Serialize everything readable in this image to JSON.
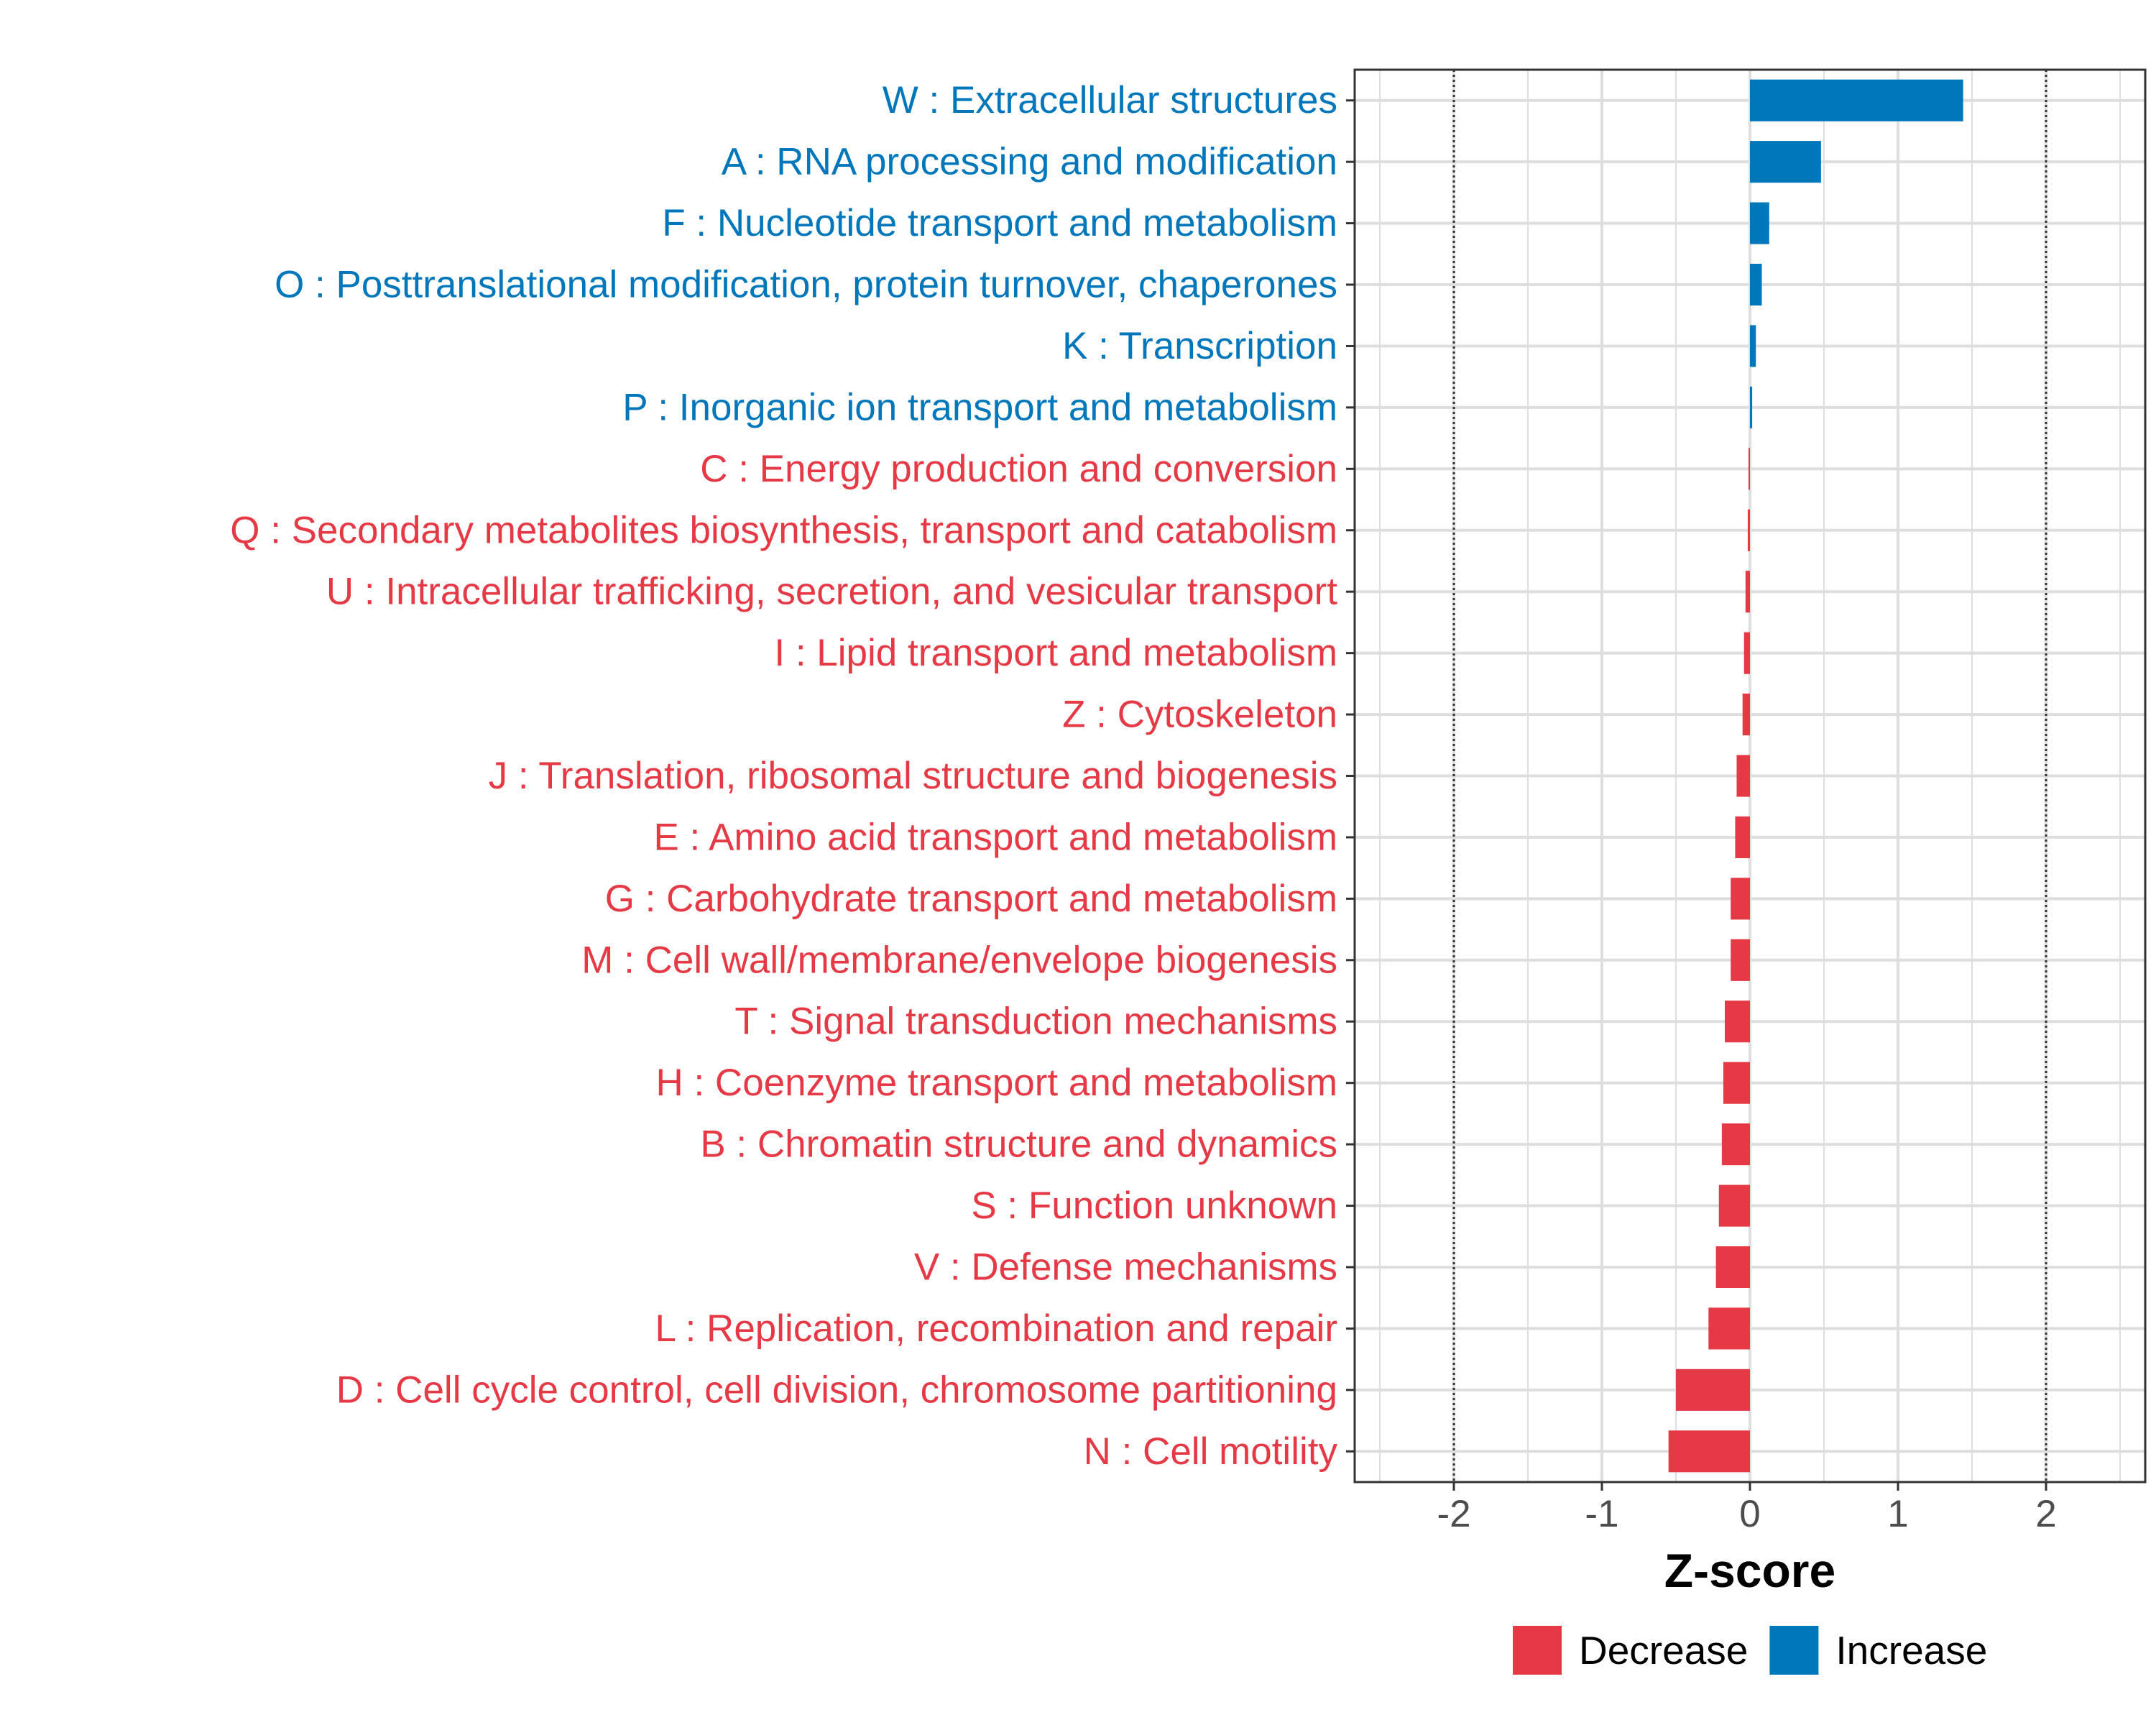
{
  "chart_data": {
    "type": "bar",
    "orientation": "horizontal",
    "title": "",
    "xlabel": "Z-score",
    "ylabel": "",
    "xlim": [
      -2.67,
      2.67
    ],
    "x_ticks": [
      -2,
      -1,
      0,
      1,
      2
    ],
    "reference_lines": [
      -2,
      2
    ],
    "grid": true,
    "legend_position": "bottom",
    "colors": {
      "Decrease": "#E63946",
      "Increase": "#0077BB"
    },
    "legend": [
      {
        "name": "Decrease",
        "color": "#E63946"
      },
      {
        "name": "Increase",
        "color": "#0077BB"
      }
    ],
    "categories": [
      "W : Extracellular structures",
      "A : RNA processing and modification",
      "F : Nucleotide transport and metabolism",
      "O : Posttranslational modification, protein turnover, chaperones",
      "K : Transcription",
      "P : Inorganic ion transport and metabolism",
      "C : Energy production and conversion",
      "Q : Secondary metabolites biosynthesis, transport and catabolism",
      "U : Intracellular trafficking, secretion, and vesicular transport",
      "I : Lipid transport and metabolism",
      "Z : Cytoskeleton",
      "J : Translation, ribosomal structure and biogenesis",
      "E : Amino acid transport and metabolism",
      "G : Carbohydrate transport and metabolism",
      "M : Cell wall/membrane/envelope biogenesis",
      "T : Signal transduction mechanisms",
      "H : Coenzyme transport and metabolism",
      "B : Chromatin structure and dynamics",
      "S : Function unknown",
      "V : Defense mechanisms",
      "L : Replication, recombination and repair",
      "D : Cell cycle control, cell division, chromosome partitioning",
      "N : Cell motility"
    ],
    "values": [
      1.44,
      0.48,
      0.13,
      0.08,
      0.04,
      0.015,
      -0.01,
      -0.015,
      -0.03,
      -0.04,
      -0.05,
      -0.09,
      -0.1,
      -0.13,
      -0.13,
      -0.17,
      -0.18,
      -0.19,
      -0.21,
      -0.23,
      -0.28,
      -0.5,
      -0.55
    ],
    "direction": [
      "Increase",
      "Increase",
      "Increase",
      "Increase",
      "Increase",
      "Increase",
      "Decrease",
      "Decrease",
      "Decrease",
      "Decrease",
      "Decrease",
      "Decrease",
      "Decrease",
      "Decrease",
      "Decrease",
      "Decrease",
      "Decrease",
      "Decrease",
      "Decrease",
      "Decrease",
      "Decrease",
      "Decrease",
      "Decrease"
    ]
  }
}
